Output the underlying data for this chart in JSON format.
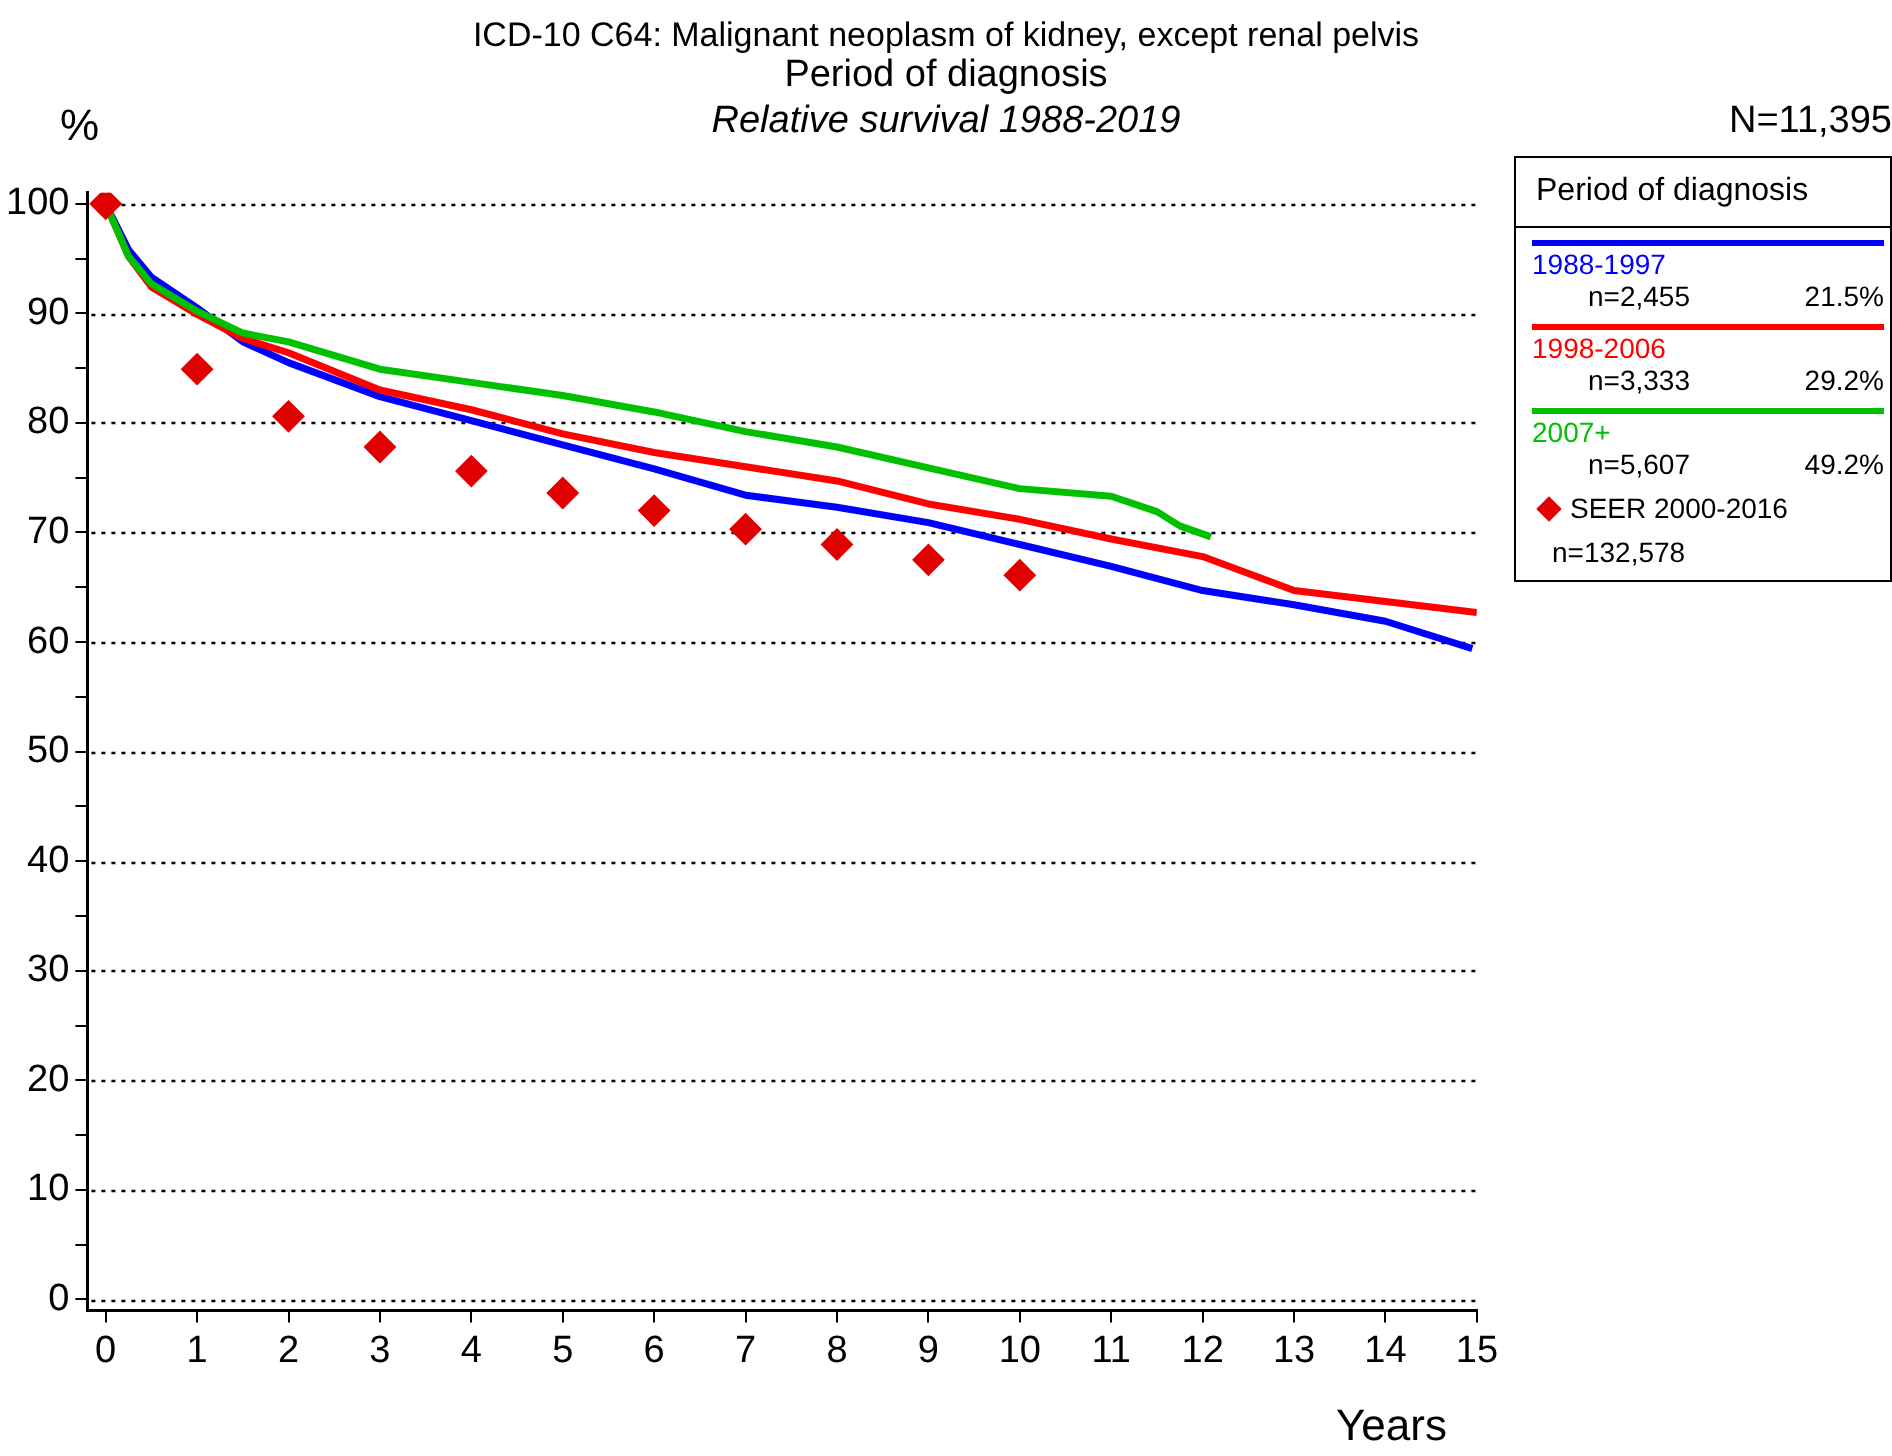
{
  "chart_data": {
    "type": "line",
    "title": "ICD-10 C64: Malignant neoplasm of kidney, except renal pelvis",
    "subtitle": "Period of diagnosis",
    "xlabel": "Years",
    "ylabel": "%",
    "legend_title": "Period of diagnosis",
    "annotations": [
      "Relative survival 1988-2019",
      "N=11,395",
      "n=2,455",
      "21.5%",
      "n=3,333",
      "29.2%",
      "n=5,607",
      "49.2%",
      "n=132,578"
    ],
    "series": [
      {
        "name": "1988-1997",
        "color": "#0000ff",
        "x": [
          0,
          0.25,
          0.5,
          1,
          1.5,
          2,
          3,
          4,
          5,
          6,
          7,
          8,
          9,
          10,
          11,
          12,
          13,
          14,
          14.95
        ],
        "values": [
          100,
          95.8,
          93.3,
          90.5,
          87.4,
          85.5,
          82.4,
          80.2,
          78,
          75.8,
          73.4,
          72.3,
          70.9,
          68.9,
          66.9,
          64.7,
          63.4,
          61.9,
          59.4
        ]
      },
      {
        "name": "1998-2006",
        "color": "#ff0000",
        "x": [
          0,
          0.25,
          0.5,
          1,
          1.5,
          2,
          3,
          4,
          5,
          6,
          7,
          8,
          9,
          10,
          11,
          12,
          13,
          14,
          15
        ],
        "values": [
          100,
          95.2,
          92.4,
          89.9,
          87.7,
          86.4,
          83,
          81.2,
          79,
          77.3,
          76,
          74.7,
          72.6,
          71.2,
          69.4,
          67.8,
          64.7,
          63.7,
          62.7
        ]
      },
      {
        "name": "2007+",
        "color": "#00c000",
        "x": [
          0,
          0.25,
          0.5,
          1,
          1.5,
          2,
          3,
          4,
          5,
          6,
          7,
          8,
          9,
          10,
          11,
          11.5,
          11.75,
          12.09
        ],
        "values": [
          100,
          95.2,
          92.7,
          90.2,
          88.2,
          87.4,
          84.9,
          83.7,
          82.5,
          81,
          79.2,
          77.8,
          75.9,
          74,
          73.3,
          71.9,
          70.6,
          69.6
        ]
      },
      {
        "name": "SEER 2000-2016",
        "type": "scatter",
        "marker": "diamond",
        "color": "#e00000",
        "x": [
          0,
          1,
          2,
          3,
          4,
          5,
          6,
          7,
          8,
          9,
          10
        ],
        "values": [
          100,
          84.9,
          80.6,
          77.8,
          75.6,
          73.6,
          72,
          70.3,
          68.9,
          67.5,
          66.1
        ]
      }
    ],
    "marker": "none",
    "line_style": "solid",
    "grid": "y",
    "legend": "right",
    "xlim": [
      -0.2,
      15
    ],
    "xticks": [
      0,
      1,
      2,
      3,
      4,
      5,
      6,
      7,
      8,
      9,
      10,
      11,
      12,
      13,
      14,
      15
    ],
    "ylim": [
      -1,
      101
    ],
    "yticks": [
      0,
      {
        "value": 5,
        "label": null
      },
      10,
      {
        "value": 15,
        "label": null
      },
      20,
      {
        "value": 25,
        "label": null
      },
      30,
      {
        "value": 35,
        "label": null
      },
      40,
      {
        "value": 45,
        "label": null
      },
      50,
      {
        "value": 55,
        "label": null
      },
      60,
      {
        "value": 65,
        "label": null
      },
      70,
      {
        "value": 75,
        "label": null
      },
      80,
      {
        "value": 85,
        "label": null
      },
      90,
      {
        "value": 95,
        "label": null
      },
      100
    ]
  }
}
